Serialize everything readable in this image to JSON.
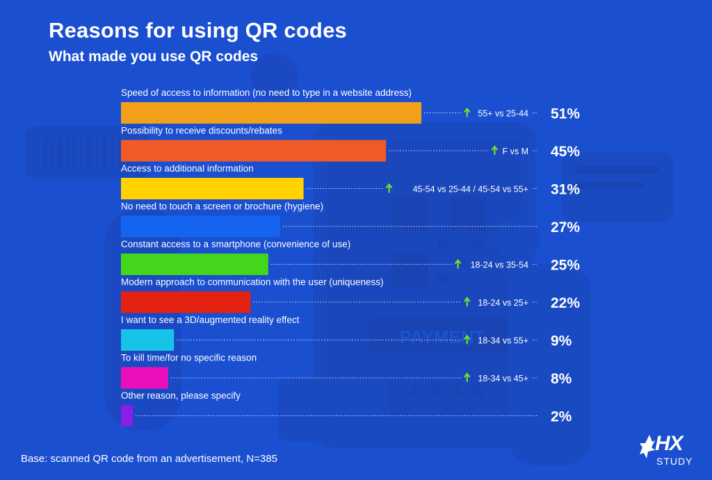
{
  "header": {
    "title": "Reasons for using QR codes",
    "subtitle": "What made you use QR codes"
  },
  "footnote": "Base: scanned QR code from an advertisement, N=385",
  "logo": {
    "name": "HX",
    "tagline": "STUDY"
  },
  "chart_data": {
    "type": "bar",
    "orientation": "horizontal",
    "categories": [
      "Speed of access to information (no need to type in a website address)",
      "Possibility to receive discounts/rebates",
      "Access to additional information",
      "No need to touch a screen or brochure (hygiene)",
      "Constant access to a smartphone (convenience of use)",
      "Modern approach to communication with the user (uniqueness)",
      "I want to see a 3D/augmented reality effect",
      "To kill time/for no specific reason",
      "Other reason, please specify"
    ],
    "values": [
      51,
      45,
      31,
      27,
      25,
      22,
      9,
      8,
      2
    ],
    "value_labels": [
      "51%",
      "45%",
      "31%",
      "27%",
      "25%",
      "22%",
      "9%",
      "8%",
      "2%"
    ],
    "annotations": [
      "55+ vs 25-44",
      "F vs M",
      "45-54 vs 25-44 / 45-54 vs 55+",
      "",
      "18-24 vs 35-54",
      "18-24 vs 25+",
      "18-34 vs 55+",
      "18-34 vs 45+",
      ""
    ],
    "colors": [
      "#f2a01a",
      "#f05a28",
      "#ffd200",
      "#1464f0",
      "#44d61b",
      "#e32212",
      "#16c4e8",
      "#ea0fba",
      "#8a1ee6"
    ],
    "annotation_arrow_color": "#6be52b",
    "xlim": [
      0,
      51
    ],
    "grid": false,
    "legend": "none"
  }
}
